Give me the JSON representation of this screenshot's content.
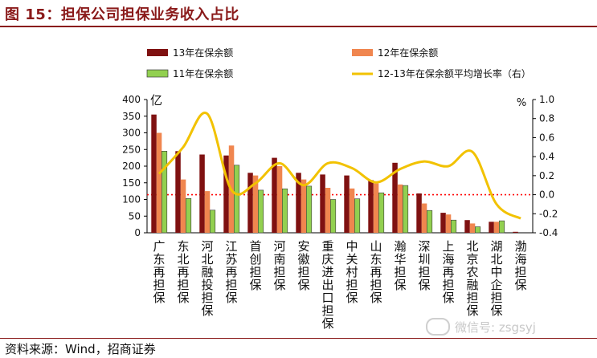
{
  "header": {
    "title": "图 15：担保公司担保业务收入占比"
  },
  "footer": {
    "source": "资料来源：Wind，招商证券",
    "watermark": "微信号: zsgsyj"
  },
  "colors": {
    "s13": "#7f1111",
    "s12": "#f0864f",
    "s11": "#92d050",
    "growth": "#f2c200",
    "ref": "#ff0000",
    "title": "#8a1a1a"
  },
  "chart_data": {
    "type": "bar",
    "categories": [
      "广东再担保",
      "东北再担保",
      "河北融投担保",
      "江苏再担保",
      "首创担保",
      "河南担保",
      "安徽担保",
      "重庆进出口担保",
      "中关村担保",
      "山东再担保",
      "瀚华担保",
      "深圳担保",
      "上海再担保",
      "北京农融担保",
      "湖北中企担保",
      "渤海担保"
    ],
    "series": [
      {
        "name": "13年在保余额",
        "type": "bar",
        "axis": "left",
        "values": [
          355,
          245,
          235,
          232,
          180,
          225,
          180,
          175,
          172,
          158,
          210,
          118,
          60,
          38,
          33,
          3
        ]
      },
      {
        "name": "12年在保余额",
        "type": "bar",
        "axis": "left",
        "values": [
          300,
          160,
          125,
          262,
          172,
          200,
          160,
          135,
          133,
          148,
          145,
          88,
          55,
          28,
          33,
          0
        ]
      },
      {
        "name": "11年在保余额",
        "type": "bar",
        "axis": "left",
        "values": [
          245,
          103,
          68,
          203,
          128,
          132,
          140,
          100,
          102,
          120,
          142,
          67,
          38,
          18,
          36,
          0
        ]
      },
      {
        "name": "12-13年在保余额平均增长率（右）",
        "type": "line",
        "axis": "right",
        "values": [
          0.22,
          0.5,
          0.85,
          0.05,
          0.12,
          0.33,
          0.1,
          0.33,
          0.28,
          0.13,
          0.27,
          0.35,
          0.3,
          0.45,
          -0.1,
          -0.25
        ]
      }
    ],
    "left_axis": {
      "unit": "亿",
      "ylim": [
        0,
        400
      ],
      "ticks": [
        0,
        50,
        100,
        150,
        200,
        250,
        300,
        350,
        400
      ]
    },
    "right_axis": {
      "unit": "%",
      "ylim": [
        -0.4,
        1.0
      ],
      "ticks": [
        "-0.4",
        "-0.2",
        "0.0",
        "0.2",
        "0.4",
        "0.6",
        "0.8",
        "1.0"
      ]
    },
    "reference_line": {
      "axis": "right",
      "value": 0.0
    },
    "grid": false,
    "legend": "top"
  }
}
